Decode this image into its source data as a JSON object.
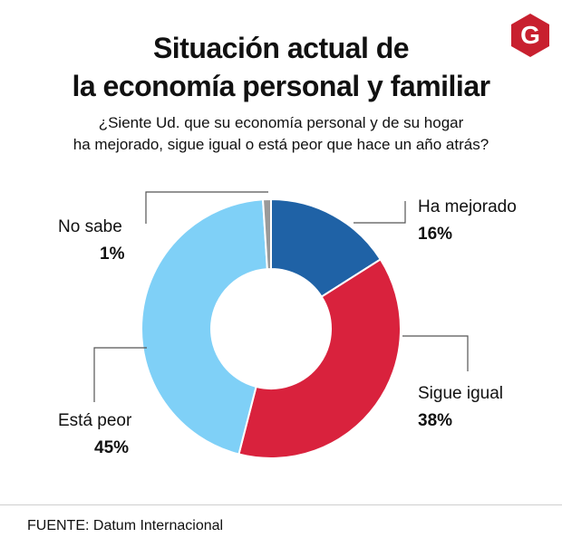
{
  "header": {
    "title_line1": "Situación actual de",
    "title_line2": "la economía personal y familiar",
    "question_line1": "¿Siente Ud. que su economía personal y de su hogar",
    "question_line2": "ha mejorado, sigue igual o está peor que hace un año atrás?"
  },
  "logo": {
    "letter": "G",
    "color": "#c8202f"
  },
  "chart_data": {
    "type": "pie",
    "donut": true,
    "title": "Situación actual de la economía personal y familiar",
    "slices": [
      {
        "label": "Ha mejorado",
        "value": 16,
        "display": "16%",
        "color": "#1f62a6"
      },
      {
        "label": "Sigue igual",
        "value": 38,
        "display": "38%",
        "color": "#d9223d"
      },
      {
        "label": "Está peor",
        "value": 45,
        "display": "45%",
        "color": "#7fd0f7"
      },
      {
        "label": "No sabe",
        "value": 1,
        "display": "1%",
        "color": "#9a9a9a"
      }
    ]
  },
  "footer": {
    "source": "FUENTE: Datum Internacional"
  }
}
